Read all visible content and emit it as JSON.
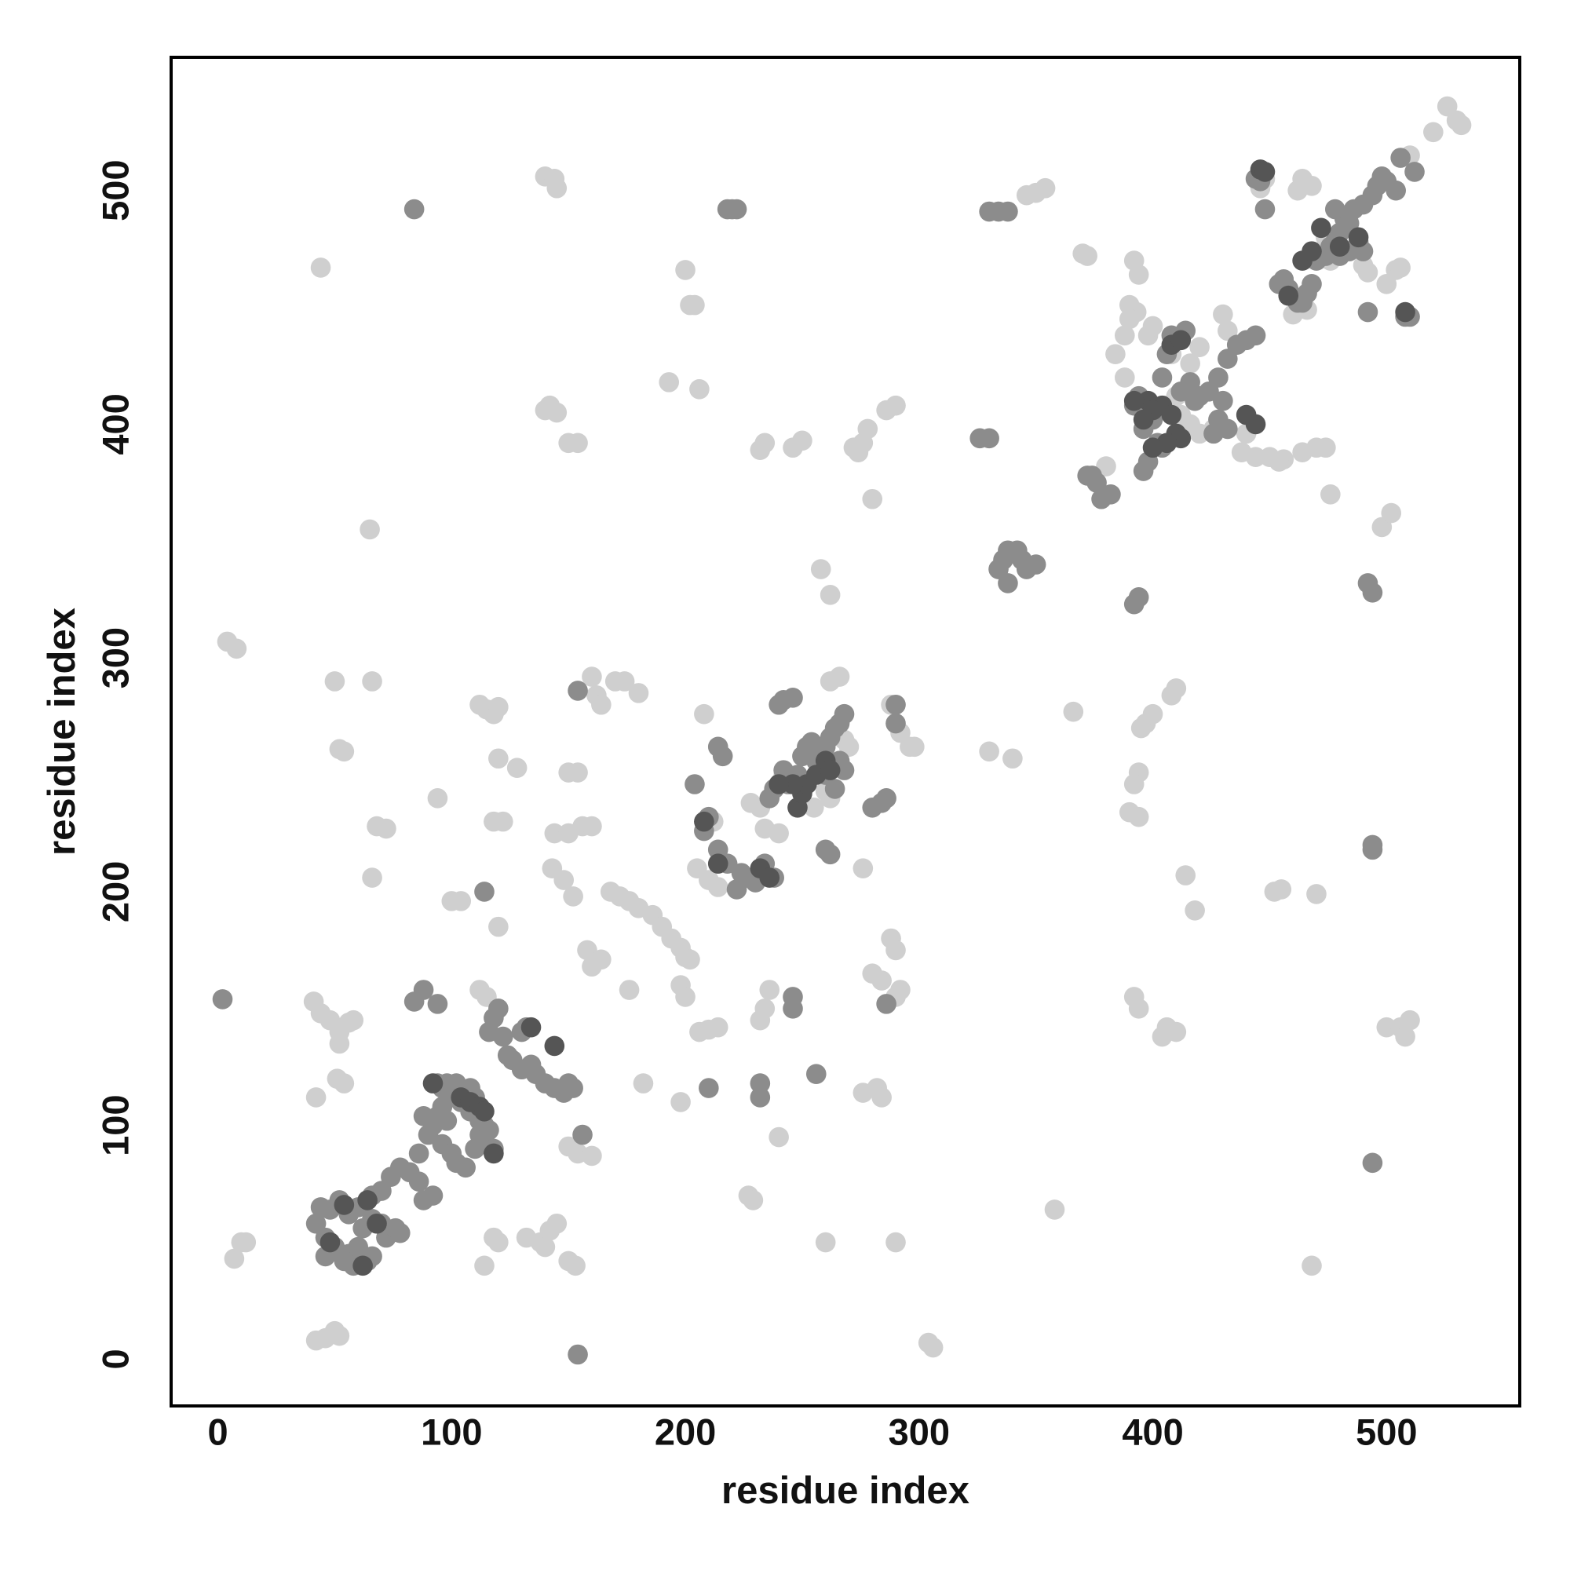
{
  "chart_data": {
    "type": "scatter",
    "x_label": "residue index",
    "y_label": "residue index",
    "xlim": [
      -20,
      557
    ],
    "ylim": [
      -20,
      557
    ],
    "xticks": [
      0,
      100,
      200,
      300,
      400,
      500
    ],
    "yticks": [
      0,
      100,
      200,
      300,
      400,
      500
    ],
    "point_radius": 4.3,
    "series": [
      {
        "color": "#cfcfcf",
        "x": [
          4,
          8,
          10,
          12,
          7,
          44,
          50,
          52,
          54,
          41,
          44,
          48,
          52,
          56,
          58,
          52,
          51,
          54,
          42,
          42,
          46,
          50,
          52,
          65,
          66,
          68,
          72,
          66,
          94,
          100,
          104,
          112,
          115,
          118,
          120,
          120,
          118,
          122,
          120,
          112,
          115,
          118,
          120,
          114,
          128,
          132,
          138,
          142,
          145,
          140,
          150,
          153,
          140,
          144,
          145,
          140,
          145,
          142,
          150,
          154,
          150,
          154,
          144,
          150,
          156,
          160,
          143,
          148,
          152,
          160,
          162,
          164,
          170,
          174,
          180,
          168,
          172,
          176,
          180,
          186,
          190,
          194,
          198,
          200,
          202,
          198,
          200,
          158,
          164,
          160,
          176,
          154,
          160,
          150,
          182,
          198,
          206,
          210,
          214,
          200,
          202,
          204,
          193,
          206,
          208,
          205,
          210,
          214,
          212,
          232,
          234,
          236,
          228,
          232,
          234,
          240,
          234,
          232,
          246,
          250,
          227,
          229,
          240,
          242,
          258,
          262,
          255,
          260,
          262,
          266,
          268,
          270,
          260,
          262,
          272,
          276,
          278,
          274,
          280,
          282,
          284,
          276,
          280,
          284,
          288,
          290,
          290,
          292,
          292,
          296,
          298,
          288,
          286,
          290,
          276,
          290,
          304,
          306,
          330,
          340,
          346,
          350,
          354,
          358,
          366,
          370,
          372,
          380,
          392,
          394,
          390,
          393,
          395,
          397,
          400,
          394,
          392,
          390,
          394,
          392,
          394,
          406,
          410,
          404,
          408,
          410,
          414,
          418,
          420,
          416,
          440,
          444,
          446,
          448,
          452,
          455,
          456,
          462,
          464,
          468,
          470,
          474,
          476,
          468,
          470,
          474,
          476,
          490,
          492,
          500,
          504,
          506,
          498,
          502,
          500,
          506,
          508,
          510,
          526,
          532,
          510,
          520,
          530,
          460,
          466,
          430,
          432,
          398,
          400,
          408,
          410,
          406,
          412,
          390,
          388,
          388,
          384,
          416,
          420,
          426,
          438,
          450,
          464,
          454
        ],
        "values": [
          307,
          304,
          50,
          50,
          43,
          467,
          290,
          261,
          260,
          153,
          148,
          145,
          140,
          144,
          145,
          135,
          120,
          118,
          112,
          8,
          9,
          12,
          10,
          355,
          290,
          228,
          227,
          206,
          240,
          196,
          196,
          280,
          278,
          276,
          279,
          257,
          230,
          230,
          185,
          158,
          155,
          52,
          50,
          40,
          253,
          52,
          50,
          55,
          58,
          48,
          42,
          40,
          506,
          505,
          501,
          406,
          405,
          408,
          392,
          392,
          251,
          251,
          225,
          225,
          228,
          228,
          210,
          205,
          198,
          292,
          284,
          280,
          290,
          290,
          285,
          200,
          198,
          196,
          193,
          190,
          185,
          180,
          176,
          172,
          171,
          160,
          155,
          175,
          171,
          168,
          158,
          88,
          87,
          91,
          118,
          110,
          140,
          141,
          142,
          466,
          451,
          451,
          418,
          415,
          276,
          210,
          205,
          202,
          230,
          145,
          150,
          158,
          238,
          236,
          227,
          225,
          392,
          389,
          390,
          393,
          70,
          68,
          95,
          250,
          338,
          327,
          236,
          50,
          290,
          292,
          265,
          262,
          243,
          240,
          390,
          392,
          398,
          388,
          368,
          116,
          112,
          114,
          165,
          162,
          180,
          175,
          155,
          158,
          268,
          262,
          262,
          280,
          406,
          408,
          210,
          50,
          7,
          5,
          260,
          257,
          498,
          499,
          501,
          64,
          277,
          473,
          472,
          382,
          470,
          464,
          451,
          448,
          270,
          272,
          276,
          251,
          246,
          234,
          232,
          155,
          150,
          142,
          140,
          138,
          284,
          287,
          207,
          192,
          433,
          426,
          396,
          386,
          501,
          505,
          200,
          201,
          385,
          500,
          505,
          502,
          390,
          390,
          370,
          40,
          199,
          480,
          470,
          468,
          465,
          460,
          466,
          467,
          356,
          362,
          142,
          142,
          138,
          145,
          536,
          528,
          515,
          525,
          530,
          447,
          449,
          447,
          440,
          438,
          442,
          430,
          412,
          408,
          404,
          445,
          438,
          420,
          430,
          400,
          396,
          398,
          388,
          386,
          388,
          384
        ]
      },
      {
        "color": "#8c8c8c",
        "x": [
          84,
          220,
          218,
          222,
          326,
          330,
          330,
          334,
          338,
          154,
          2,
          84,
          88,
          94,
          66,
          70,
          74,
          78,
          82,
          86,
          92,
          88,
          60,
          56,
          52,
          48,
          44,
          42,
          46,
          50,
          56,
          60,
          62,
          66,
          70,
          72,
          76,
          78,
          64,
          66,
          58,
          54,
          46,
          86,
          90,
          94,
          96,
          98,
          92,
          88,
          96,
          100,
          102,
          106,
          110,
          112,
          114,
          108,
          104,
          100,
          96,
          94,
          98,
          102,
          108,
          112,
          116,
          114,
          118,
          110,
          116,
          118,
          120,
          122,
          124,
          126,
          130,
          134,
          136,
          140,
          144,
          148,
          150,
          152,
          156,
          114,
          132,
          130,
          154,
          204,
          210,
          208,
          214,
          218,
          214,
          216,
          224,
          226,
          230,
          234,
          238,
          236,
          238,
          242,
          244,
          248,
          250,
          252,
          254,
          256,
          258,
          260,
          262,
          264,
          266,
          268,
          240,
          242,
          246,
          260,
          262,
          256,
          262,
          260,
          264,
          266,
          268,
          210,
          246,
          246,
          222,
          232,
          232,
          286,
          290,
          290,
          284,
          280,
          286,
          334,
          336,
          338,
          342,
          344,
          346,
          350,
          338,
          372,
          374,
          376,
          382,
          378,
          392,
          394,
          492,
          494,
          494,
          494,
          494,
          492,
          448,
          446,
          444,
          404,
          412,
          416,
          418,
          420,
          424,
          428,
          432,
          436,
          440,
          444,
          430,
          428,
          432,
          426,
          404,
          402,
          396,
          400,
          406,
          410,
          414,
          408,
          394,
          392,
          398,
          454,
          456,
          458,
          462,
          464,
          466,
          468,
          474,
          476,
          480,
          482,
          484,
          478,
          486,
          490,
          494,
          496,
          498,
          500,
          504,
          508,
          510,
          512,
          506,
          470,
          478,
          488,
          490,
          484,
          480,
          396,
          398
        ],
        "values": [
          492,
          492,
          492,
          492,
          394,
          394,
          491,
          491,
          491,
          2,
          154,
          153,
          158,
          152,
          70,
          72,
          78,
          82,
          80,
          76,
          70,
          68,
          65,
          62,
          68,
          64,
          65,
          58,
          52,
          48,
          45,
          48,
          56,
          60,
          58,
          52,
          56,
          54,
          42,
          44,
          40,
          42,
          44,
          88,
          96,
          104,
          108,
          102,
          100,
          104,
          92,
          88,
          84,
          82,
          90,
          96,
          100,
          106,
          110,
          114,
          116,
          118,
          118,
          118,
          116,
          102,
          98,
          94,
          90,
          112,
          140,
          146,
          150,
          138,
          130,
          128,
          124,
          126,
          122,
          118,
          116,
          114,
          118,
          116,
          96,
          200,
          142,
          140,
          286,
          246,
          232,
          226,
          218,
          212,
          262,
          258,
          208,
          206,
          204,
          212,
          206,
          240,
          244,
          252,
          246,
          250,
          258,
          262,
          264,
          256,
          252,
          262,
          266,
          270,
          272,
          276,
          280,
          282,
          283,
          218,
          216,
          122,
          255,
          250,
          244,
          256,
          252,
          116,
          155,
          150,
          201,
          112,
          118,
          152,
          272,
          280,
          238,
          236,
          240,
          338,
          342,
          346,
          346,
          342,
          338,
          340,
          332,
          378,
          378,
          375,
          370,
          368,
          323,
          326,
          332,
          328,
          218,
          220,
          84,
          448,
          492,
          504,
          505,
          420,
          414,
          418,
          410,
          412,
          414,
          420,
          428,
          434,
          436,
          438,
          410,
          402,
          398,
          396,
          390,
          392,
          398,
          402,
          430,
          436,
          440,
          438,
          412,
          408,
          404,
          460,
          462,
          458,
          452,
          452,
          456,
          460,
          472,
          476,
          482,
          488,
          486,
          492,
          492,
          494,
          498,
          502,
          506,
          504,
          500,
          446,
          446,
          508,
          514,
          470,
          478,
          478,
          474,
          474,
          472,
          380,
          384
        ]
      },
      {
        "color": "#555555",
        "x": [
          64,
          54,
          48,
          62,
          68,
          92,
          104,
          108,
          112,
          114,
          118,
          134,
          144,
          248,
          250,
          252,
          256,
          260,
          262,
          246,
          240,
          232,
          236,
          214,
          208,
          404,
          408,
          398,
          400,
          410,
          412,
          406,
          408,
          412,
          400,
          396,
          458,
          464,
          468,
          472,
          488,
          480,
          508,
          446,
          448,
          440,
          444,
          392
        ],
        "values": [
          68,
          66,
          50,
          40,
          58,
          118,
          112,
          110,
          108,
          106,
          88,
          142,
          134,
          236,
          242,
          246,
          250,
          256,
          252,
          246,
          246,
          210,
          206,
          212,
          230,
          408,
          404,
          410,
          406,
          396,
          394,
          392,
          434,
          436,
          390,
          402,
          455,
          470,
          474,
          484,
          480,
          476,
          448,
          509,
          508,
          404,
          400,
          410
        ]
      }
    ]
  }
}
